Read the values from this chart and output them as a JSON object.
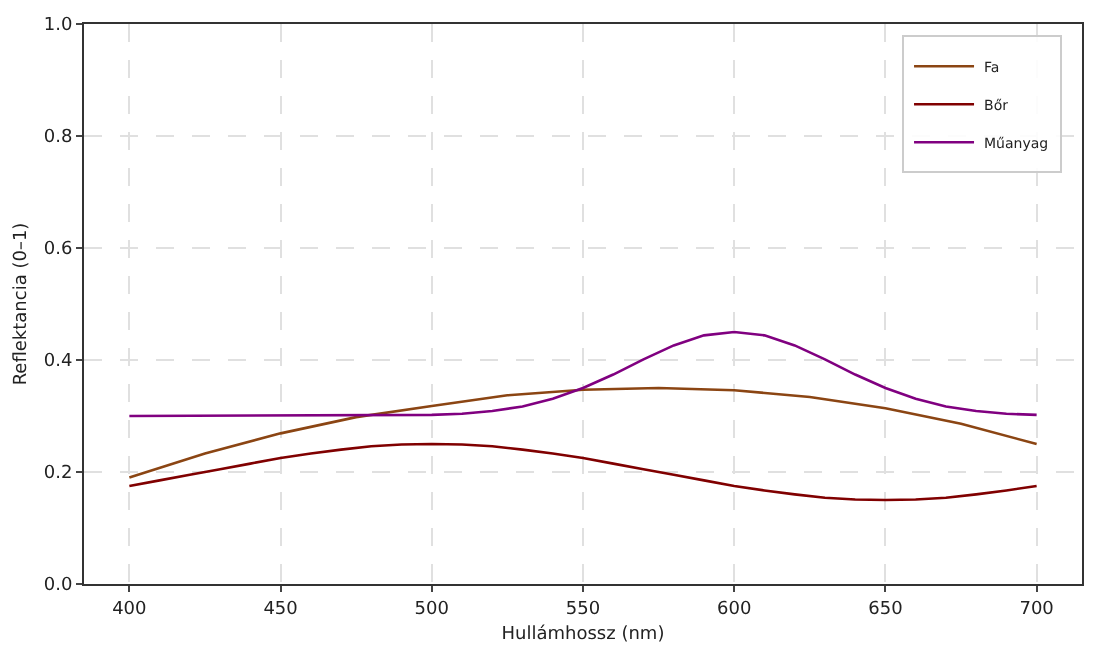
{
  "chart_data": {
    "type": "line",
    "xlabel": "Hullámhossz (nm)",
    "ylabel": "Reflektancia (0–1)",
    "xlim": [
      385,
      715
    ],
    "xticks": [
      400,
      450,
      500,
      550,
      600,
      650,
      700
    ],
    "ylim": [
      0,
      1
    ],
    "yticks": [
      {
        "value": 0,
        "label": "0.0"
      },
      {
        "value": 0.2,
        "label": "0.2"
      },
      {
        "value": 0.4,
        "label": "0.4"
      },
      {
        "value": 0.6,
        "label": "0.6"
      },
      {
        "value": 0.8,
        "label": "0.8"
      },
      {
        "value": 1,
        "label": "1.0"
      }
    ],
    "grid": true,
    "legend": "top right",
    "marker": "none",
    "line_style": "solid",
    "series": [
      {
        "name": "Fa",
        "color": "#8b4513",
        "x": [
          400,
          425,
          450,
          475,
          500,
          525,
          550,
          575,
          600,
          625,
          650,
          675,
          700
        ],
        "values": [
          0.19,
          0.233,
          0.269,
          0.298,
          0.318,
          0.337,
          0.347,
          0.35,
          0.346,
          0.334,
          0.314,
          0.286,
          0.25
        ]
      },
      {
        "name": "Bőr",
        "color": "#800000",
        "x": [
          400,
          410,
          420,
          430,
          440,
          450,
          460,
          470,
          480,
          490,
          500,
          510,
          520,
          530,
          540,
          550,
          560,
          570,
          580,
          590,
          600,
          610,
          620,
          630,
          640,
          650,
          660,
          670,
          680,
          690,
          700
        ],
        "values": [
          0.175,
          0.185,
          0.195,
          0.205,
          0.215,
          0.225,
          0.233,
          0.24,
          0.246,
          0.249,
          0.25,
          0.249,
          0.246,
          0.24,
          0.233,
          0.225,
          0.215,
          0.205,
          0.195,
          0.185,
          0.175,
          0.167,
          0.16,
          0.154,
          0.151,
          0.15,
          0.151,
          0.154,
          0.16,
          0.167,
          0.175
        ]
      },
      {
        "name": "Műanyag",
        "color": "#800080",
        "x": [
          400,
          500,
          510,
          520,
          530,
          540,
          550,
          560,
          570,
          580,
          590,
          600,
          610,
          620,
          630,
          640,
          650,
          660,
          670,
          680,
          690,
          700
        ],
        "values": [
          0.3,
          0.302,
          0.304,
          0.309,
          0.317,
          0.331,
          0.35,
          0.374,
          0.401,
          0.426,
          0.444,
          0.45,
          0.444,
          0.426,
          0.401,
          0.374,
          0.35,
          0.331,
          0.317,
          0.309,
          0.304,
          0.302
        ]
      }
    ]
  }
}
